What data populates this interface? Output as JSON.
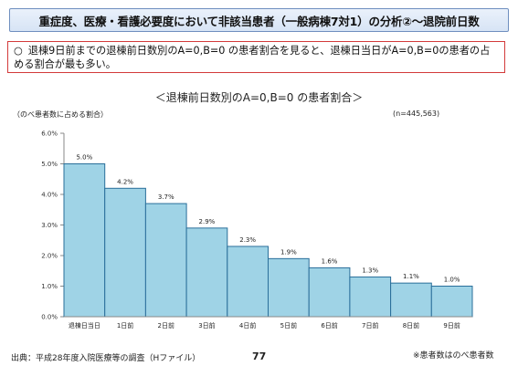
{
  "header": {
    "title": "重症度、医療・看護必要度において非該当患者（一般病棟7対1）の分析②～退院前日数"
  },
  "note": {
    "bullet": "○",
    "text": "退棟9日前までの退棟前日数別のA=0,B=0 の患者割合を見ると、退棟日当日がA=0,B=0の患者の占める割合が最も多い。"
  },
  "footer": {
    "source": "出典：平成28年度入院医療等の調査（Hファイル）",
    "page_number": "77",
    "note": "※患者数はのべ患者数"
  },
  "colors": {
    "bar_fill": "#9fd3e6",
    "bar_stroke": "#2a6f9a",
    "axis": "#888888",
    "note_border": "#d33a3a",
    "title_bg": "#dce7f5"
  },
  "chart_data": {
    "type": "bar",
    "title": "＜退棟前日数別のA=0,B=0 の患者割合＞",
    "ylabel": "（のべ患者数に占める割合）",
    "sample_size": "(n=445,563)",
    "categories": [
      "退棟日当日",
      "1日前",
      "2日前",
      "3日前",
      "4日前",
      "5日前",
      "6日前",
      "7日前",
      "8日前",
      "9日前"
    ],
    "values": [
      5.0,
      4.2,
      3.7,
      2.9,
      2.3,
      1.9,
      1.6,
      1.3,
      1.1,
      1.0
    ],
    "value_labels": [
      "5.0%",
      "4.2%",
      "3.7%",
      "2.9%",
      "2.3%",
      "1.9%",
      "1.6%",
      "1.3%",
      "1.1%",
      "1.0%"
    ],
    "yticks": [
      "0.0%",
      "1.0%",
      "2.0%",
      "3.0%",
      "4.0%",
      "5.0%",
      "6.0%"
    ],
    "ylim": [
      0,
      6
    ],
    "grid": false
  }
}
